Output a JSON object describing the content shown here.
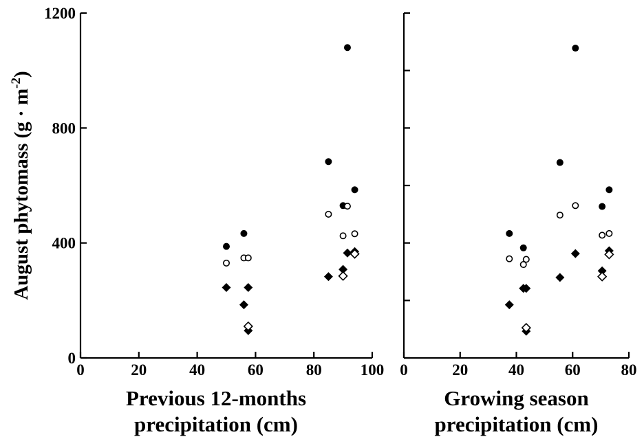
{
  "chart_data": [
    {
      "type": "scatter",
      "xlabel": [
        "Previous 12-months",
        "precipitation (cm)"
      ],
      "ylabel": "August phytomass (g · m⁻²)",
      "xlim": [
        0,
        100
      ],
      "ylim": [
        0,
        1200
      ],
      "xticks": [
        0,
        20,
        40,
        60,
        80,
        100
      ],
      "yticks": [
        0,
        400,
        800,
        1200
      ],
      "ytick_labels": [
        "0",
        "400",
        "800",
        "1200"
      ],
      "series": [
        {
          "marker": "filled-circle",
          "color": "#000000",
          "points": [
            [
              50,
              388
            ],
            [
              56,
              433
            ],
            [
              85,
              683
            ],
            [
              90,
              530
            ],
            [
              91.5,
              1080
            ],
            [
              94,
              585
            ]
          ]
        },
        {
          "marker": "open-circle",
          "color": "#000000",
          "points": [
            [
              50,
              330
            ],
            [
              56,
              348
            ],
            [
              57.5,
              348
            ],
            [
              85,
              500
            ],
            [
              90,
              425
            ],
            [
              91.5,
              528
            ],
            [
              94,
              432
            ]
          ]
        },
        {
          "marker": "filled-diamond",
          "color": "#000000",
          "points": [
            [
              50,
              245
            ],
            [
              56,
              185
            ],
            [
              57.5,
              245
            ],
            [
              57.5,
              95
            ],
            [
              85,
              283
            ],
            [
              90,
              308
            ],
            [
              91.5,
              365
            ],
            [
              94,
              370
            ]
          ]
        },
        {
          "marker": "open-diamond",
          "color": "#000000",
          "points": [
            [
              57.5,
              110
            ],
            [
              90,
              285
            ],
            [
              94,
              362
            ]
          ]
        }
      ]
    },
    {
      "type": "scatter",
      "xlabel": [
        "Growing season",
        "precipitation (cm)"
      ],
      "ylabel": "",
      "xlim": [
        0,
        80
      ],
      "ylim": [
        0,
        1200
      ],
      "xticks": [
        0,
        20,
        40,
        60,
        80
      ],
      "yticks": [
        0,
        200,
        400,
        600,
        800,
        1000,
        1200
      ],
      "ytick_labels": [],
      "series": [
        {
          "marker": "filled-circle",
          "color": "#000000",
          "points": [
            [
              37.5,
              433
            ],
            [
              42.5,
              383
            ],
            [
              55.5,
              680
            ],
            [
              61,
              1078
            ],
            [
              70.5,
              527
            ],
            [
              73,
              585
            ]
          ]
        },
        {
          "marker": "open-circle",
          "color": "#000000",
          "points": [
            [
              37.5,
              345
            ],
            [
              42.5,
              325
            ],
            [
              43.5,
              343
            ],
            [
              55.5,
              497
            ],
            [
              61,
              530
            ],
            [
              70.5,
              427
            ],
            [
              73,
              433
            ]
          ]
        },
        {
          "marker": "filled-diamond",
          "color": "#000000",
          "points": [
            [
              37.5,
              185
            ],
            [
              42.5,
              242
            ],
            [
              43.5,
              242
            ],
            [
              43.5,
              93
            ],
            [
              55.5,
              280
            ],
            [
              61,
              363
            ],
            [
              70.5,
              303
            ],
            [
              73,
              373
            ]
          ]
        },
        {
          "marker": "open-diamond",
          "color": "#000000",
          "points": [
            [
              43.5,
              105
            ],
            [
              70.5,
              283
            ],
            [
              73,
              360
            ]
          ]
        }
      ]
    }
  ]
}
